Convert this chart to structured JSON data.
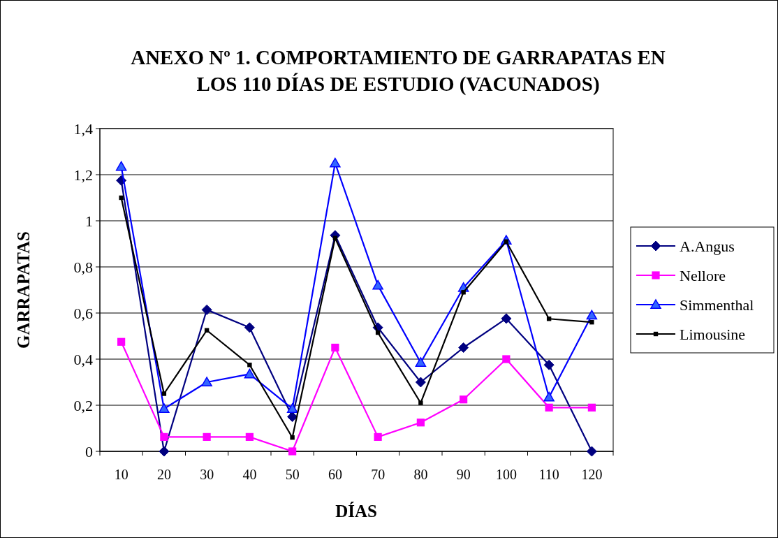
{
  "chart_data": {
    "type": "line",
    "title": "ANEXO Nº 1. COMPORTAMIENTO DE GARRAPATAS EN LOS 110 DÍAS DE ESTUDIO (VACUNADOS)",
    "xlabel": "DÍAS",
    "ylabel": "GARRAPATAS",
    "categories": [
      "10",
      "20",
      "30",
      "40",
      "50",
      "60",
      "70",
      "80",
      "90",
      "100",
      "110",
      "120"
    ],
    "series": [
      {
        "name": "A.Angus",
        "color": "#000080",
        "marker": "diamond",
        "values": [
          1.175,
          0,
          0.614,
          0.537,
          0.15,
          0.937,
          0.537,
          0.3,
          0.45,
          0.576,
          0.375,
          0
        ]
      },
      {
        "name": "Nellore",
        "color": "#ff00ff",
        "marker": "square",
        "values": [
          0.475,
          0.0625,
          0.0625,
          0.0625,
          0,
          0.45,
          0.0625,
          0.125,
          0.225,
          0.4,
          0.19,
          0.19
        ]
      },
      {
        "name": "Simmenthal",
        "color": "#0000ff",
        "marker": "triangle",
        "values": [
          1.235,
          0.185,
          0.3,
          0.335,
          0.185,
          1.25,
          0.72,
          0.385,
          0.71,
          0.915,
          0.235,
          0.59
        ]
      },
      {
        "name": "Limousine",
        "color": "#000000",
        "marker": "square",
        "values": [
          1.1,
          0.25,
          0.525,
          0.375,
          0.06,
          0.925,
          0.515,
          0.21,
          0.69,
          0.91,
          0.575,
          0.56
        ]
      }
    ],
    "ylim": [
      0,
      1.4
    ],
    "yticks": [
      0,
      {
        "value": 0.2,
        "label": "0,2"
      },
      {
        "value": 0.4,
        "label": "0,4"
      },
      {
        "value": 0.6,
        "label": "0,6"
      },
      {
        "value": 0.8,
        "label": "0,8"
      },
      1,
      {
        "value": 1.2,
        "label": "1,2"
      },
      {
        "value": 1.4,
        "label": "1,4"
      }
    ],
    "grid": "y",
    "legend": "right"
  }
}
